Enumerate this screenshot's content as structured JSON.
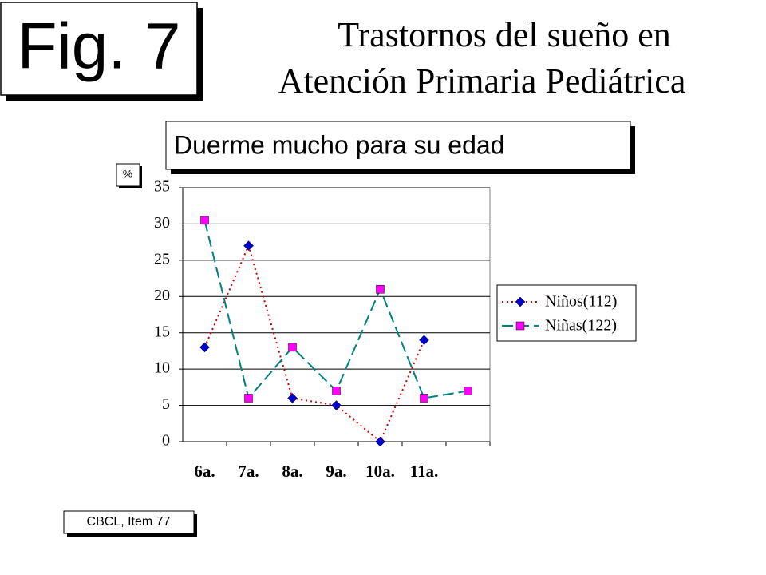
{
  "figure_label": "Fig. 7",
  "chart_data": {
    "type": "line",
    "title": [
      "Trastornos del sueño en",
      "Atención Primaria Pediátrica"
    ],
    "subtitle": "Duerme mucho para su edad",
    "y_label": "%",
    "note": "CBCL, Item 77",
    "categories": [
      "6a.",
      "7a.",
      "8a.",
      "9a.",
      "10a.",
      "11a.",
      null
    ],
    "series": [
      {
        "name": "Niños(112)",
        "color": "#cc0000",
        "marker_color": "#0000cc",
        "marker": "diamond",
        "dash": "dotted",
        "values": [
          13,
          27,
          6,
          5,
          0,
          14,
          null
        ]
      },
      {
        "name": "Niñas(122)",
        "color": "#008080",
        "marker_color": "#ff00ff",
        "marker": "square",
        "dash": "dashed",
        "values": [
          30.5,
          6,
          13,
          7,
          21,
          6,
          7
        ]
      }
    ],
    "ylim": [
      0,
      35
    ],
    "yticks": [
      0,
      5,
      10,
      15,
      20,
      25,
      30,
      35
    ],
    "grid": true,
    "legend": "right"
  }
}
